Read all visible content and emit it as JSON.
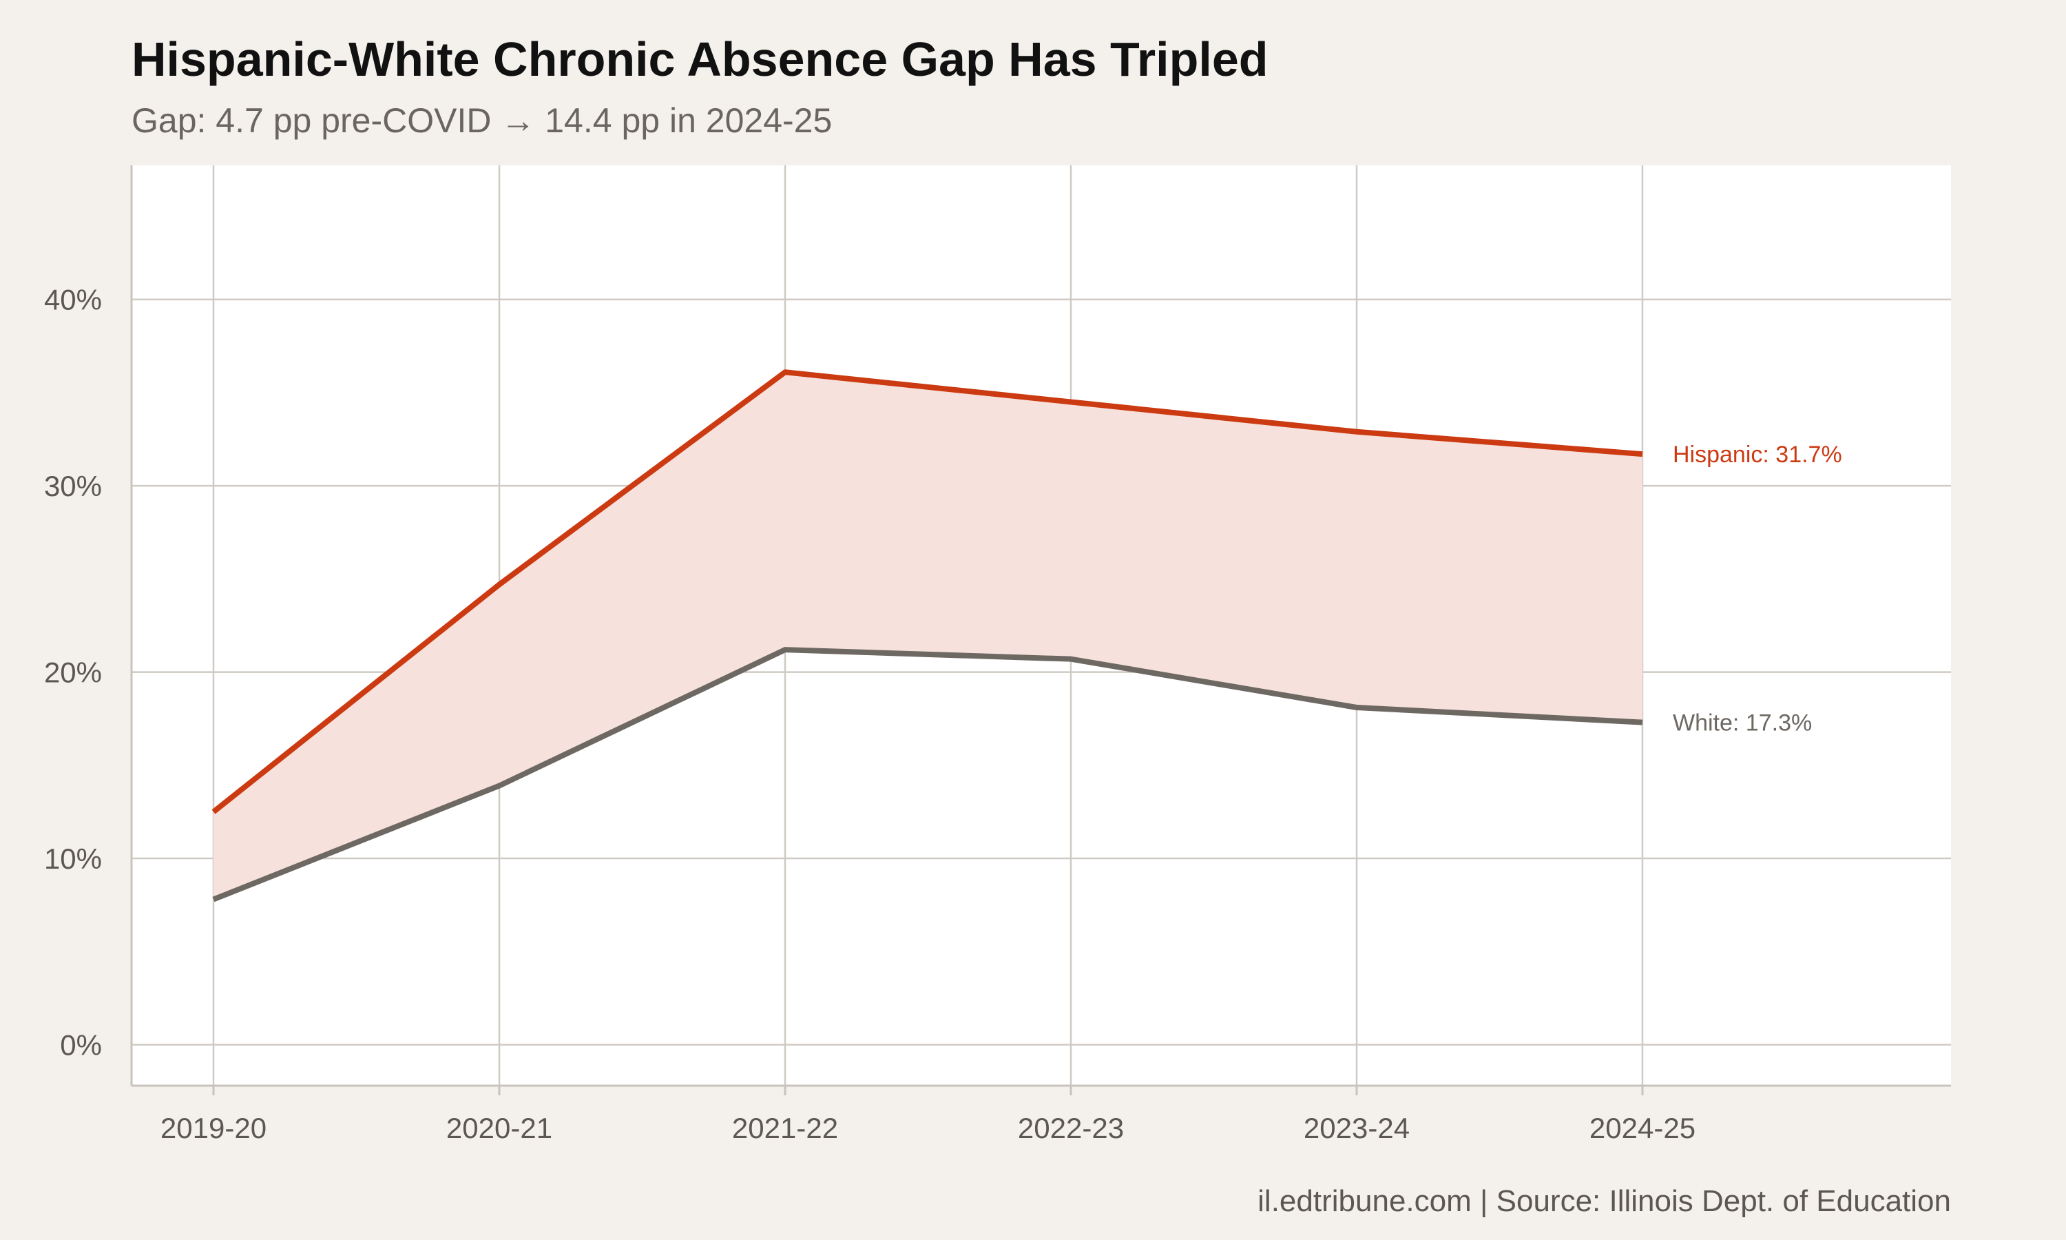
{
  "colors": {
    "background": "#f4f1ec",
    "panel": "#ffffff",
    "hispanic": "#cc3a12",
    "white": "#6e6863",
    "gap_fill": "#f7e1dc"
  },
  "chart_data": {
    "type": "line",
    "title": "Hispanic-White Chronic Absence Gap Has Tripled",
    "subtitle": "Gap: 4.7 pp pre-COVID → 14.4 pp in 2024-25",
    "caption": "il.edtribune.com | Source: Illinois Dept. of Education",
    "xlabel": "",
    "ylabel": "",
    "categories": [
      "2019-20",
      "2020-21",
      "2021-22",
      "2022-23",
      "2023-24",
      "2024-25"
    ],
    "series": [
      {
        "name": "Hispanic",
        "end_label": "Hispanic: 31.7%",
        "color": "#cc3a12",
        "values": [
          12.5,
          24.7,
          36.1,
          34.5,
          32.9,
          31.7
        ]
      },
      {
        "name": "White",
        "end_label": "White: 17.3%",
        "color": "#6e6863",
        "values": [
          7.8,
          13.9,
          21.2,
          20.7,
          18.1,
          17.3
        ]
      }
    ],
    "shaded_gap_between_series": true,
    "ylim": [
      -2.2,
      47.2
    ],
    "yticks": [
      0,
      10,
      20,
      30,
      40
    ],
    "ytick_labels": [
      "0%",
      "10%",
      "20%",
      "30%",
      "40%"
    ],
    "grid": true,
    "legend": "none (direct end labels)"
  }
}
